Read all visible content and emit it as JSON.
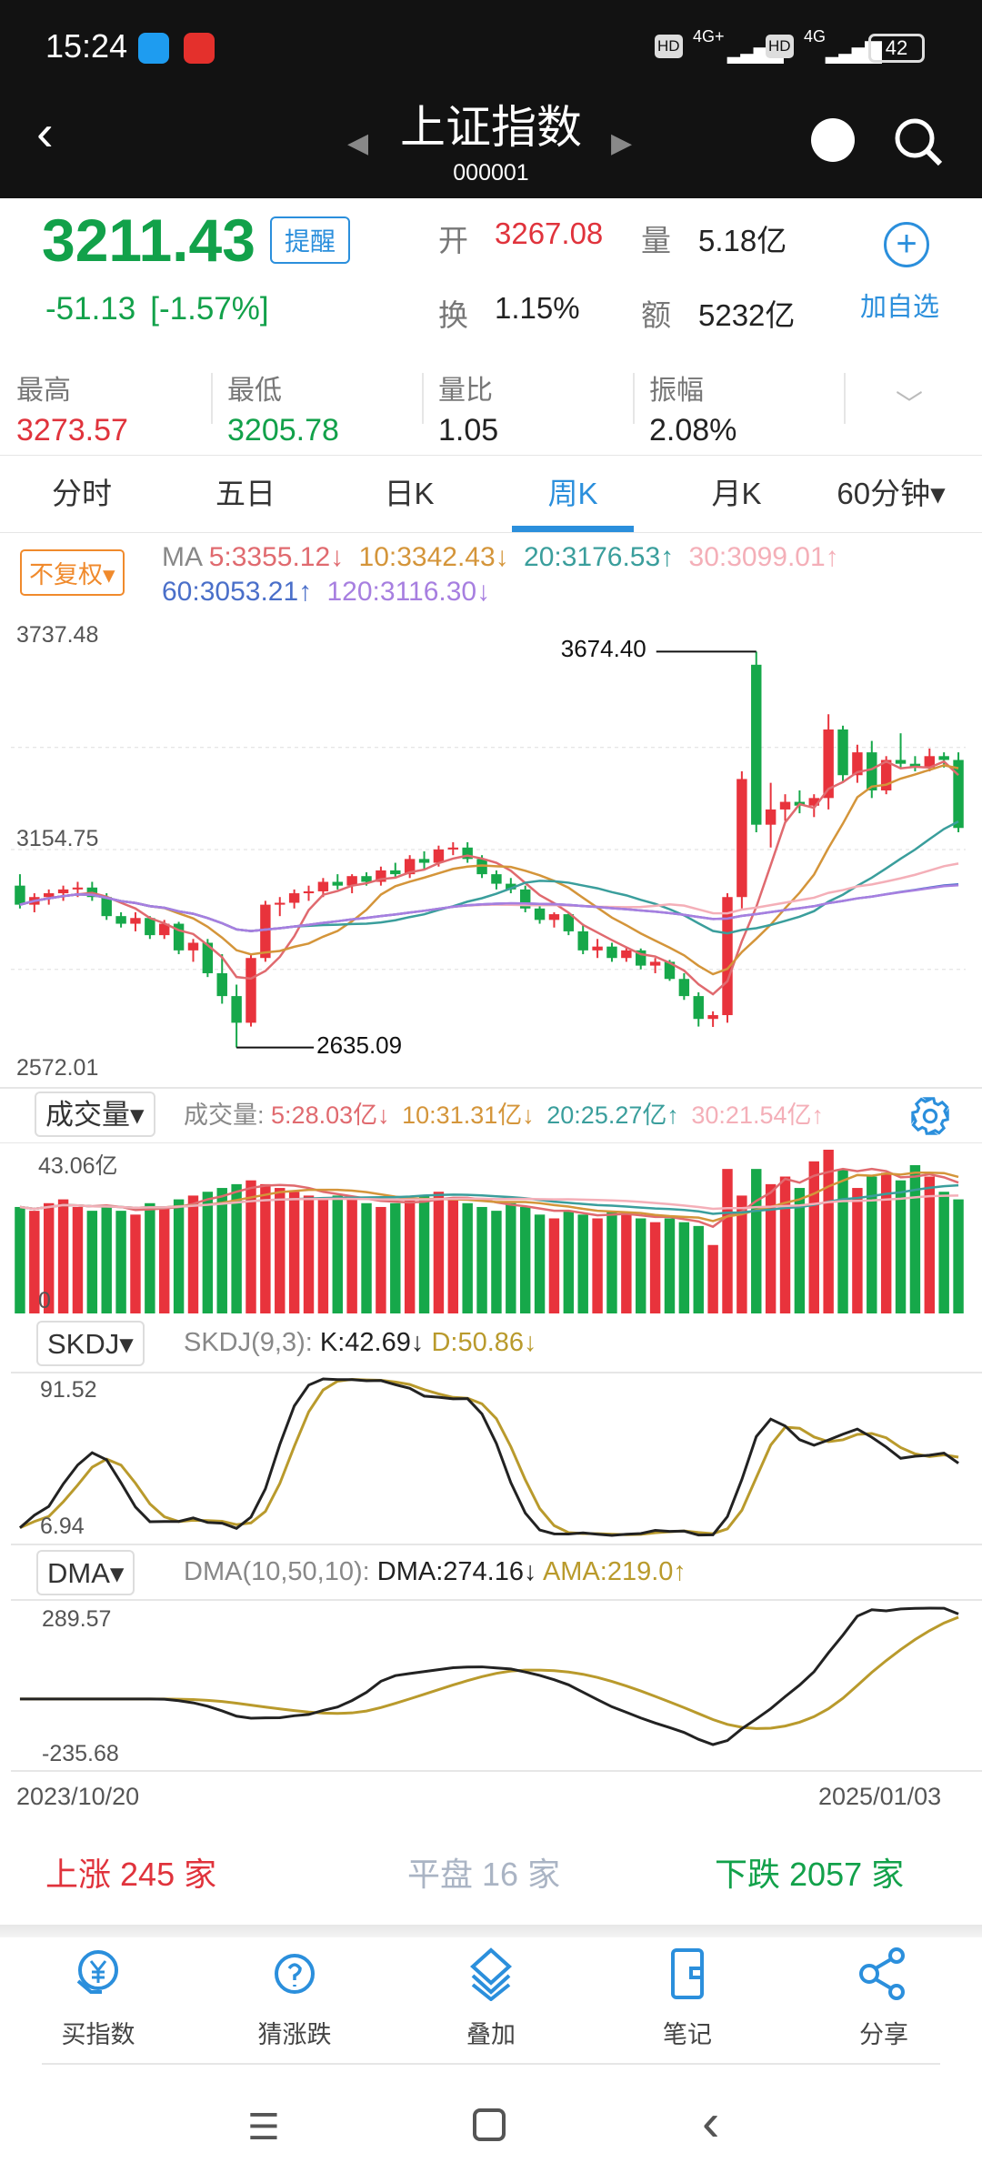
{
  "status": {
    "time": "15:24",
    "net1": "4G+",
    "net2": "4G",
    "hd": "HD",
    "battery": "42"
  },
  "header": {
    "title": "上证指数",
    "code": "000001"
  },
  "quote": {
    "price": "3211.43",
    "change": "-51.13",
    "change_pct": "[-1.57%]",
    "alert_label": "提醒",
    "open_label": "开",
    "open": "3267.08",
    "vol_label": "量",
    "vol": "5.18亿",
    "turn_label": "换",
    "turn": "1.15%",
    "amt_label": "额",
    "amt": "5232亿",
    "add_label": "加自选"
  },
  "stats": [
    {
      "label": "最高",
      "value": "3273.57",
      "color": "red"
    },
    {
      "label": "最低",
      "value": "3205.78",
      "color": "green"
    },
    {
      "label": "量比",
      "value": "1.05",
      "color": "black"
    },
    {
      "label": "振幅",
      "value": "2.08%",
      "color": "black"
    }
  ],
  "tabs": [
    {
      "label": "分时"
    },
    {
      "label": "五日"
    },
    {
      "label": "日K"
    },
    {
      "label": "周K",
      "active": true
    },
    {
      "label": "月K"
    },
    {
      "label": "60分钟▾"
    }
  ],
  "ma_legend": {
    "adjust": "不复权",
    "title": "MA",
    "items": [
      {
        "text": "5:3355.12↓",
        "color": "#e06a6f"
      },
      {
        "text": "10:3342.43↓",
        "color": "#d4953a"
      },
      {
        "text": "20:3176.53↑",
        "color": "#3a9e9c"
      },
      {
        "text": "30:3099.01↑",
        "color": "#f4afb8"
      },
      {
        "text": "60:3053.21↑",
        "color": "#4a6fc9"
      },
      {
        "text": "120:3116.30↓",
        "color": "#a77fe0"
      }
    ]
  },
  "vol_legend": {
    "selector": "成交量",
    "title": "成交量:",
    "items": [
      {
        "text": "5:28.03亿↓",
        "color": "#e06a6f"
      },
      {
        "text": "10:31.31亿↓",
        "color": "#d4953a"
      },
      {
        "text": "20:25.27亿↑",
        "color": "#3a9e9c"
      },
      {
        "text": "30:21.54亿↑",
        "color": "#f4afb8"
      }
    ]
  },
  "skdj_legend": {
    "selector": "SKDJ",
    "title": "SKDJ(9,3):",
    "k": "K:42.69↓",
    "d": "D:50.86↓"
  },
  "dma_legend": {
    "selector": "DMA",
    "title": "DMA(10,50,10):",
    "dma": "DMA:274.16↓",
    "ama": "AMA:219.0↑"
  },
  "colors": {
    "up": "#e8333c",
    "down": "#16a84a",
    "accent": "#2b8fdc"
  },
  "chart_data": {
    "type": "candlestick",
    "price_axis": {
      "max": "3737.48",
      "mid": "3154.75",
      "min": "2572.01"
    },
    "annotations": {
      "high": "3674.40",
      "low": "2635.09"
    },
    "x_start": "2023/10/20",
    "x_end": "2025/01/03",
    "candles": [
      [
        3060,
        3090,
        3000,
        3010
      ],
      [
        3010,
        3040,
        2990,
        3030
      ],
      [
        3030,
        3050,
        3010,
        3040
      ],
      [
        3040,
        3060,
        3020,
        3050
      ],
      [
        3050,
        3070,
        3030,
        3055
      ],
      [
        3055,
        3070,
        3020,
        3030
      ],
      [
        3030,
        3040,
        2970,
        2980
      ],
      [
        2980,
        2990,
        2950,
        2960
      ],
      [
        2960,
        2990,
        2940,
        2975
      ],
      [
        2975,
        2980,
        2920,
        2930
      ],
      [
        2930,
        2970,
        2920,
        2960
      ],
      [
        2960,
        2965,
        2880,
        2890
      ],
      [
        2890,
        2920,
        2860,
        2910
      ],
      [
        2910,
        2920,
        2820,
        2830
      ],
      [
        2830,
        2880,
        2750,
        2770
      ],
      [
        2770,
        2800,
        2635.09,
        2700
      ],
      [
        2700,
        2880,
        2690,
        2870
      ],
      [
        2870,
        3020,
        2860,
        3010
      ],
      [
        3010,
        3030,
        2980,
        3015
      ],
      [
        3015,
        3050,
        3000,
        3040
      ],
      [
        3040,
        3060,
        3020,
        3045
      ],
      [
        3045,
        3080,
        3030,
        3070
      ],
      [
        3070,
        3090,
        3050,
        3060
      ],
      [
        3060,
        3090,
        3040,
        3085
      ],
      [
        3085,
        3095,
        3060,
        3070
      ],
      [
        3070,
        3110,
        3060,
        3100
      ],
      [
        3100,
        3120,
        3080,
        3090
      ],
      [
        3090,
        3140,
        3080,
        3130
      ],
      [
        3130,
        3150,
        3100,
        3120
      ],
      [
        3120,
        3165,
        3110,
        3155
      ],
      [
        3155,
        3174,
        3140,
        3160
      ],
      [
        3160,
        3174,
        3120,
        3130
      ],
      [
        3130,
        3140,
        3080,
        3090
      ],
      [
        3090,
        3100,
        3050,
        3065
      ],
      [
        3065,
        3080,
        3040,
        3050
      ],
      [
        3050,
        3060,
        2990,
        3000
      ],
      [
        3000,
        3010,
        2960,
        2970
      ],
      [
        2970,
        2990,
        2950,
        2985
      ],
      [
        2985,
        2990,
        2930,
        2940
      ],
      [
        2940,
        2960,
        2880,
        2890
      ],
      [
        2890,
        2920,
        2870,
        2900
      ],
      [
        2900,
        2910,
        2860,
        2870
      ],
      [
        2870,
        2900,
        2860,
        2890
      ],
      [
        2890,
        2895,
        2840,
        2850
      ],
      [
        2850,
        2870,
        2830,
        2860
      ],
      [
        2860,
        2865,
        2810,
        2815
      ],
      [
        2815,
        2830,
        2760,
        2770
      ],
      [
        2770,
        2780,
        2690,
        2710
      ],
      [
        2710,
        2730,
        2689,
        2720
      ],
      [
        2720,
        3040,
        2700,
        3030
      ],
      [
        3030,
        3360,
        3000,
        3340
      ],
      [
        3640,
        3674.4,
        3200,
        3220
      ],
      [
        3220,
        3330,
        3160,
        3260
      ],
      [
        3260,
        3300,
        3230,
        3280
      ],
      [
        3280,
        3310,
        3250,
        3270
      ],
      [
        3270,
        3300,
        3240,
        3290
      ],
      [
        3290,
        3510,
        3260,
        3470
      ],
      [
        3470,
        3480,
        3330,
        3350
      ],
      [
        3350,
        3430,
        3330,
        3410
      ],
      [
        3410,
        3440,
        3290,
        3310
      ],
      [
        3310,
        3400,
        3300,
        3390
      ],
      [
        3390,
        3460,
        3370,
        3380
      ],
      [
        3380,
        3400,
        3360,
        3370
      ],
      [
        3370,
        3420,
        3360,
        3400
      ],
      [
        3400,
        3410,
        3370,
        3390
      ],
      [
        3390,
        3410,
        3200,
        3211.43
      ]
    ],
    "volume_axis": {
      "max": "43.06亿",
      "min": "0"
    },
    "volume": [
      28,
      27,
      29,
      30,
      28,
      27,
      28,
      27,
      26,
      29,
      28,
      30,
      31,
      32,
      33,
      34,
      35,
      34,
      33,
      32,
      31,
      30,
      31,
      30,
      29,
      28,
      29,
      30,
      31,
      32,
      30,
      29,
      28,
      27,
      29,
      28,
      26,
      25,
      27,
      26,
      25,
      27,
      26,
      25,
      24,
      25,
      24,
      23,
      18,
      38,
      31,
      38,
      34,
      36,
      33,
      40,
      43.06,
      38,
      33,
      36,
      37,
      35,
      39,
      36,
      32,
      30
    ],
    "skdj_axis": {
      "max": "91.52",
      "min": "6.94"
    },
    "dma_axis": {
      "max": "289.57",
      "min": "-235.68"
    }
  },
  "breadth": {
    "up_label": "上涨",
    "up": "245",
    "down_label": "下跌",
    "down": "2057",
    "flat_label": "平盘",
    "flat": "16",
    "unit": "家"
  },
  "toolbar": [
    {
      "label": "买指数",
      "icon": "buy-index-icon"
    },
    {
      "label": "猜涨跌",
      "icon": "guess-icon"
    },
    {
      "label": "叠加",
      "icon": "layers-icon"
    },
    {
      "label": "笔记",
      "icon": "note-icon"
    },
    {
      "label": "分享",
      "icon": "share-icon"
    }
  ]
}
